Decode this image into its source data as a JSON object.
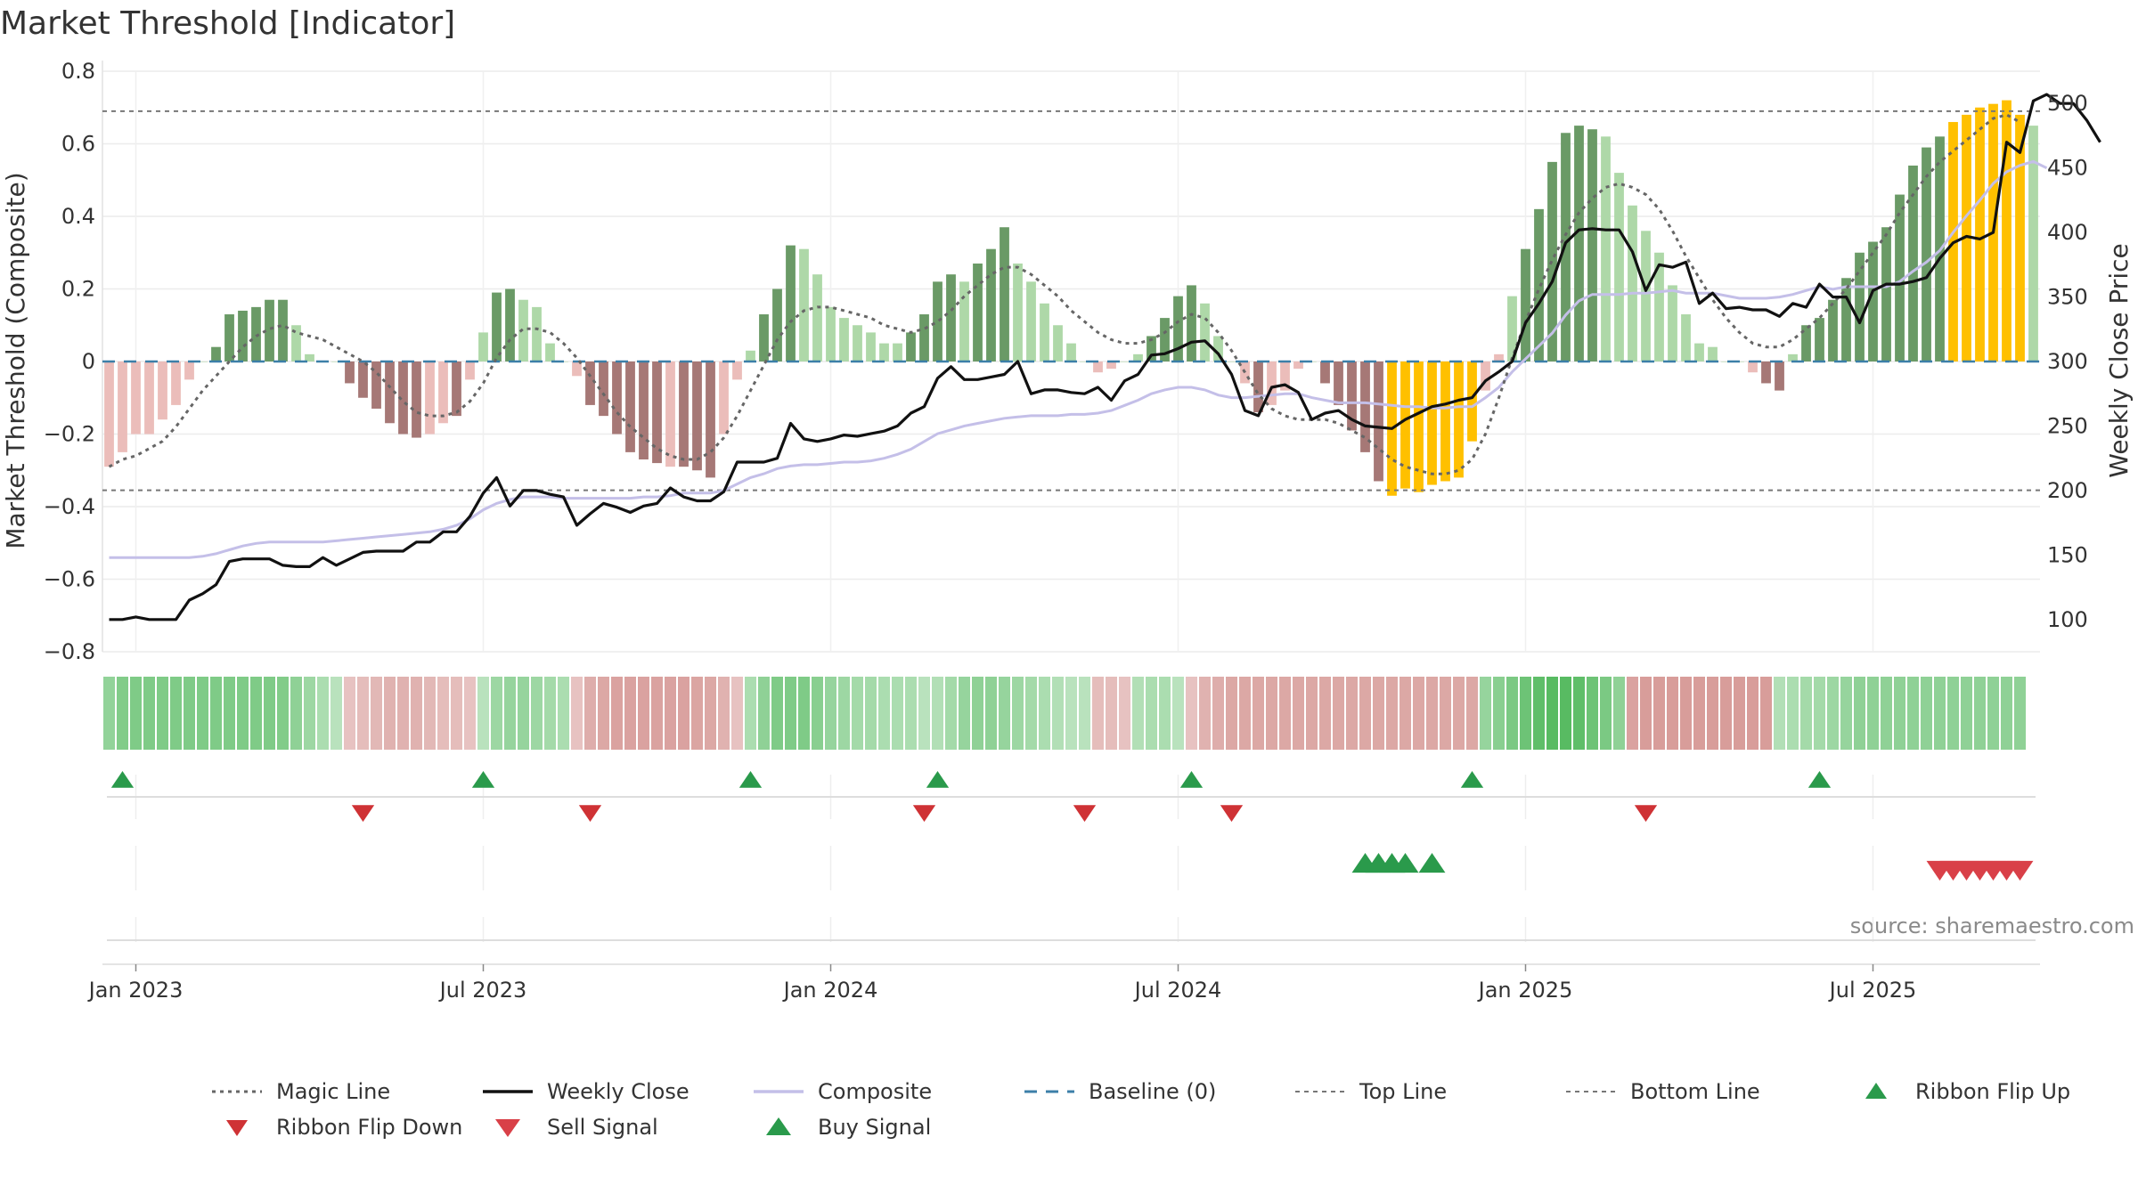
{
  "chart_data": {
    "type": "bar",
    "title": "Market Threshold [Indicator]",
    "source": "source: sharemaestro.com",
    "ylabel_left": "Market Threshold (Composite)",
    "ylabel_right": "Weekly Close Price",
    "ylim_left": [
      -0.8,
      0.8
    ],
    "ylim_right": [
      75,
      525
    ],
    "yticks_left": [
      {
        "v": 0.8,
        "label": "0.8"
      },
      {
        "v": 0.6,
        "label": "0.6"
      },
      {
        "v": 0.4,
        "label": "0.4"
      },
      {
        "v": 0.2,
        "label": "0.2"
      },
      {
        "v": 0,
        "label": "0"
      },
      {
        "v": -0.2,
        "label": "−0.2"
      },
      {
        "v": -0.4,
        "label": "−0.4"
      },
      {
        "v": -0.6,
        "label": "−0.6"
      },
      {
        "v": -0.8,
        "label": "−0.8"
      }
    ],
    "yticks_right": [
      {
        "v": 500,
        "label": "500"
      },
      {
        "v": 450,
        "label": "450"
      },
      {
        "v": 400,
        "label": "400"
      },
      {
        "v": 350,
        "label": "350"
      },
      {
        "v": 300,
        "label": "300"
      },
      {
        "v": 250,
        "label": "250"
      },
      {
        "v": 200,
        "label": "200"
      },
      {
        "v": 150,
        "label": "150"
      },
      {
        "v": 100,
        "label": "100"
      }
    ],
    "xticks": [
      {
        "week": 2,
        "label": "Jan 2023"
      },
      {
        "week": 28,
        "label": "Jul 2023"
      },
      {
        "week": 54,
        "label": "Jan 2024"
      },
      {
        "week": 80,
        "label": "Jul 2024"
      },
      {
        "week": 106,
        "label": "Jan 2025"
      },
      {
        "week": 132,
        "label": "Jul 2025"
      }
    ],
    "top_line": 0.69,
    "bottom_line": -0.355,
    "baseline": 0,
    "grid": true,
    "legend_position": "bottom",
    "colors": {
      "strong_up": "#6a9a66",
      "weak_up": "#aed8a8",
      "strong_down": "#a67876",
      "weak_down": "#ebbdba",
      "extreme": "#ffc000",
      "magic": "#666666",
      "close": "#111111",
      "composite": "#c4bfe8",
      "baseline": "#3c7fa8",
      "threshold": "#777777",
      "buy": "#2a9a4b",
      "sell": "#d94048",
      "flip_down": "#cf3235"
    },
    "bars": [
      -0.29,
      -0.25,
      -0.2,
      -0.2,
      -0.16,
      -0.12,
      -0.05,
      0.0,
      0.04,
      0.13,
      0.14,
      0.15,
      0.17,
      0.17,
      0.1,
      0.02,
      0.0,
      0.0,
      -0.06,
      -0.1,
      -0.13,
      -0.17,
      -0.2,
      -0.21,
      -0.2,
      -0.17,
      -0.15,
      -0.05,
      0.08,
      0.19,
      0.2,
      0.17,
      0.15,
      0.05,
      0.0,
      -0.04,
      -0.12,
      -0.15,
      -0.2,
      -0.25,
      -0.27,
      -0.28,
      -0.29,
      -0.29,
      -0.3,
      -0.32,
      -0.2,
      -0.05,
      0.03,
      0.13,
      0.2,
      0.32,
      0.31,
      0.24,
      0.15,
      0.12,
      0.1,
      0.08,
      0.05,
      0.05,
      0.08,
      0.13,
      0.22,
      0.24,
      0.22,
      0.27,
      0.31,
      0.37,
      0.27,
      0.22,
      0.16,
      0.1,
      0.05,
      0.0,
      -0.03,
      -0.02,
      0.0,
      0.02,
      0.07,
      0.12,
      0.18,
      0.21,
      0.16,
      0.07,
      0.0,
      -0.06,
      -0.14,
      -0.12,
      -0.08,
      -0.02,
      0.0,
      -0.06,
      -0.12,
      -0.19,
      -0.25,
      -0.33,
      -0.37,
      -0.35,
      -0.36,
      -0.34,
      -0.33,
      -0.32,
      -0.22,
      -0.08,
      0.02,
      0.18,
      0.31,
      0.42,
      0.55,
      0.63,
      0.65,
      0.64,
      0.62,
      0.52,
      0.43,
      0.36,
      0.3,
      0.21,
      0.13,
      0.05,
      0.04,
      0.0,
      0.0,
      -0.03,
      -0.06,
      -0.08,
      0.02,
      0.1,
      0.12,
      0.17,
      0.23,
      0.3,
      0.33,
      0.37,
      0.46,
      0.54,
      0.59,
      0.62,
      0.66,
      0.68,
      0.7,
      0.71,
      0.72,
      0.68,
      0.65
    ],
    "bar_types": [
      "wd",
      "wd",
      "wd",
      "wd",
      "wd",
      "wd",
      "wd",
      "n",
      "su",
      "su",
      "su",
      "su",
      "su",
      "su",
      "wu",
      "wu",
      "n",
      "n",
      "sd",
      "sd",
      "sd",
      "sd",
      "sd",
      "sd",
      "wd",
      "wd",
      "sd",
      "wd",
      "wu",
      "su",
      "su",
      "wu",
      "wu",
      "wu",
      "n",
      "wd",
      "sd",
      "sd",
      "sd",
      "sd",
      "sd",
      "sd",
      "wd",
      "sd",
      "sd",
      "sd",
      "wd",
      "wd",
      "wu",
      "su",
      "su",
      "su",
      "wu",
      "wu",
      "wu",
      "wu",
      "wu",
      "wu",
      "wu",
      "wu",
      "su",
      "su",
      "su",
      "su",
      "wu",
      "su",
      "su",
      "su",
      "wu",
      "wu",
      "wu",
      "wu",
      "wu",
      "n",
      "wd",
      "wd",
      "n",
      "wu",
      "su",
      "su",
      "su",
      "su",
      "wu",
      "wu",
      "n",
      "wd",
      "sd",
      "wd",
      "wd",
      "wd",
      "n",
      "sd",
      "sd",
      "sd",
      "sd",
      "sd",
      "ex",
      "ex",
      "ex",
      "ex",
      "ex",
      "ex",
      "ex",
      "wd",
      "wd",
      "wu",
      "su",
      "su",
      "su",
      "su",
      "su",
      "su",
      "wu",
      "wu",
      "wu",
      "wu",
      "wu",
      "wu",
      "wu",
      "wu",
      "wu",
      "n",
      "n",
      "wd",
      "sd",
      "sd",
      "wu",
      "su",
      "su",
      "su",
      "su",
      "su",
      "su",
      "su",
      "su",
      "su",
      "su",
      "su",
      "ex",
      "ex",
      "ex",
      "ex",
      "ex",
      "ex",
      "wu"
    ],
    "weekly_close": [
      100,
      100,
      102,
      100,
      100,
      100,
      115,
      120,
      127,
      145,
      147,
      147,
      147,
      142,
      141,
      141,
      148,
      142,
      147,
      152,
      153,
      153,
      153,
      160,
      160,
      168,
      168,
      180,
      198,
      210,
      188,
      200,
      200,
      197,
      195,
      173,
      182,
      190,
      187,
      183,
      188,
      190,
      202,
      195,
      192,
      192,
      199,
      222,
      222,
      222,
      225,
      252,
      240,
      238,
      240,
      243,
      242,
      244,
      246,
      250,
      260,
      265,
      287,
      296,
      286,
      286,
      288,
      290,
      300,
      275,
      278,
      278,
      276,
      275,
      280,
      270,
      285,
      290,
      305,
      306,
      310,
      315,
      316,
      306,
      290,
      262,
      258,
      280,
      282,
      276,
      255,
      260,
      262,
      255,
      250,
      249,
      248,
      255,
      260,
      265,
      267,
      270,
      272,
      285,
      292,
      300,
      330,
      345,
      362,
      392,
      402,
      403,
      402,
      402,
      385,
      355,
      375,
      373,
      377,
      345,
      353,
      341,
      342,
      340,
      340,
      335,
      345,
      342,
      360,
      350,
      350,
      330,
      355,
      360,
      360,
      362,
      365,
      380,
      392,
      397,
      395,
      400,
      470,
      462,
      502,
      507,
      500,
      500,
      487,
      470
    ],
    "magic_line": [
      -0.29,
      -0.27,
      -0.26,
      -0.24,
      -0.22,
      -0.18,
      -0.13,
      -0.08,
      -0.04,
      0.0,
      0.04,
      0.07,
      0.09,
      0.1,
      0.08,
      0.07,
      0.06,
      0.04,
      0.02,
      0.0,
      -0.03,
      -0.07,
      -0.11,
      -0.14,
      -0.15,
      -0.15,
      -0.14,
      -0.11,
      -0.06,
      0.01,
      0.06,
      0.09,
      0.09,
      0.08,
      0.05,
      0.01,
      -0.04,
      -0.09,
      -0.14,
      -0.18,
      -0.21,
      -0.24,
      -0.26,
      -0.27,
      -0.27,
      -0.25,
      -0.21,
      -0.15,
      -0.08,
      -0.01,
      0.06,
      0.11,
      0.14,
      0.15,
      0.15,
      0.14,
      0.13,
      0.12,
      0.1,
      0.09,
      0.08,
      0.09,
      0.11,
      0.14,
      0.18,
      0.21,
      0.24,
      0.26,
      0.26,
      0.24,
      0.21,
      0.18,
      0.14,
      0.11,
      0.08,
      0.06,
      0.05,
      0.05,
      0.06,
      0.08,
      0.11,
      0.13,
      0.12,
      0.08,
      0.03,
      -0.03,
      -0.09,
      -0.13,
      -0.15,
      -0.16,
      -0.16,
      -0.16,
      -0.17,
      -0.19,
      -0.21,
      -0.24,
      -0.27,
      -0.29,
      -0.3,
      -0.31,
      -0.31,
      -0.3,
      -0.27,
      -0.2,
      -0.1,
      0.01,
      0.11,
      0.2,
      0.28,
      0.35,
      0.41,
      0.45,
      0.48,
      0.49,
      0.48,
      0.46,
      0.42,
      0.36,
      0.29,
      0.23,
      0.17,
      0.12,
      0.08,
      0.05,
      0.04,
      0.04,
      0.06,
      0.09,
      0.12,
      0.16,
      0.2,
      0.25,
      0.3,
      0.35,
      0.41,
      0.46,
      0.51,
      0.55,
      0.58,
      0.61,
      0.64,
      0.67,
      0.68,
      0.66
    ],
    "composite_close": [
      148,
      148,
      148,
      148,
      148,
      148,
      148,
      149,
      151,
      154,
      157,
      159,
      160,
      160,
      160,
      160,
      160,
      161,
      162,
      163,
      164,
      165,
      166,
      167,
      168,
      170,
      173,
      178,
      185,
      190,
      193,
      195,
      195,
      195,
      194,
      194,
      194,
      194,
      194,
      194,
      195,
      195,
      196,
      198,
      198,
      198,
      200,
      205,
      210,
      213,
      217,
      219,
      220,
      220,
      221,
      222,
      222,
      223,
      225,
      228,
      232,
      238,
      244,
      247,
      250,
      252,
      254,
      256,
      257,
      258,
      258,
      258,
      259,
      259,
      260,
      262,
      266,
      270,
      275,
      278,
      280,
      280,
      278,
      274,
      272,
      272,
      273,
      274,
      275,
      275,
      272,
      270,
      268,
      268,
      268,
      267,
      266,
      265,
      265,
      264,
      264,
      265,
      265,
      272,
      280,
      292,
      302,
      312,
      322,
      336,
      347,
      352,
      352,
      352,
      353,
      353,
      354,
      355,
      353,
      353,
      353,
      351,
      349,
      349,
      349,
      350,
      352,
      355,
      358,
      356,
      358,
      358,
      358,
      358,
      362,
      370,
      377,
      386,
      400,
      413,
      425,
      438,
      447,
      452,
      455,
      450
    ],
    "buy_signal_weeks": [
      94,
      95,
      96,
      97,
      99
    ],
    "sell_signal_weeks": [
      137,
      138,
      139,
      140,
      141,
      142,
      143
    ],
    "ribbon_flip_up_weeks": [
      1,
      28,
      48,
      62,
      81,
      102,
      128
    ],
    "ribbon_flip_down_weeks": [
      19,
      36,
      61,
      73,
      84,
      115
    ],
    "ribbon": [
      0.58,
      0.7,
      0.72,
      0.72,
      0.72,
      0.72,
      0.72,
      0.72,
      0.72,
      0.72,
      0.72,
      0.72,
      0.72,
      0.7,
      0.6,
      0.5,
      0.4,
      0.3,
      -0.3,
      -0.35,
      -0.4,
      -0.45,
      -0.45,
      -0.45,
      -0.4,
      -0.35,
      -0.35,
      -0.3,
      0.3,
      0.5,
      0.55,
      0.55,
      0.5,
      0.45,
      0.4,
      -0.3,
      -0.5,
      -0.55,
      -0.6,
      -0.6,
      -0.6,
      -0.6,
      -0.6,
      -0.6,
      -0.58,
      -0.55,
      -0.45,
      -0.3,
      0.4,
      0.6,
      0.72,
      0.72,
      0.72,
      0.65,
      0.55,
      0.5,
      0.45,
      0.45,
      0.4,
      0.4,
      0.4,
      0.3,
      0.35,
      0.45,
      0.55,
      0.6,
      0.6,
      0.55,
      0.5,
      0.45,
      0.4,
      0.35,
      0.3,
      0.3,
      -0.35,
      -0.35,
      -0.3,
      0.35,
      0.4,
      0.4,
      0.3,
      -0.3,
      -0.45,
      -0.5,
      -0.55,
      -0.55,
      -0.55,
      -0.55,
      -0.55,
      -0.55,
      -0.55,
      -0.55,
      -0.55,
      -0.55,
      -0.55,
      -0.55,
      -0.55,
      -0.55,
      -0.55,
      -0.55,
      -0.55,
      -0.55,
      -0.55,
      0.55,
      0.65,
      0.75,
      0.85,
      0.95,
      1.0,
      1.0,
      0.95,
      0.85,
      0.75,
      0.6,
      -0.6,
      -0.65,
      -0.65,
      -0.65,
      -0.65,
      -0.65,
      -0.65,
      -0.65,
      -0.65,
      -0.65,
      -0.65,
      0.35,
      0.4,
      0.45,
      0.45,
      0.5,
      0.55,
      0.6,
      0.6,
      0.6,
      0.6,
      0.6,
      0.6,
      0.6,
      0.6,
      0.6,
      0.6,
      0.6,
      0.6,
      0.6
    ],
    "legend": [
      {
        "key": "magic",
        "label": "Magic Line"
      },
      {
        "key": "close",
        "label": "Weekly Close"
      },
      {
        "key": "composite",
        "label": "Composite"
      },
      {
        "key": "baseline",
        "label": "Baseline (0)"
      },
      {
        "key": "top",
        "label": "Top Line"
      },
      {
        "key": "bottom",
        "label": "Bottom Line"
      },
      {
        "key": "flip_up",
        "label": "Ribbon Flip Up"
      },
      {
        "key": "flip_down",
        "label": "Ribbon Flip Down"
      },
      {
        "key": "sell",
        "label": "Sell Signal"
      },
      {
        "key": "buy",
        "label": "Buy Signal"
      }
    ]
  }
}
